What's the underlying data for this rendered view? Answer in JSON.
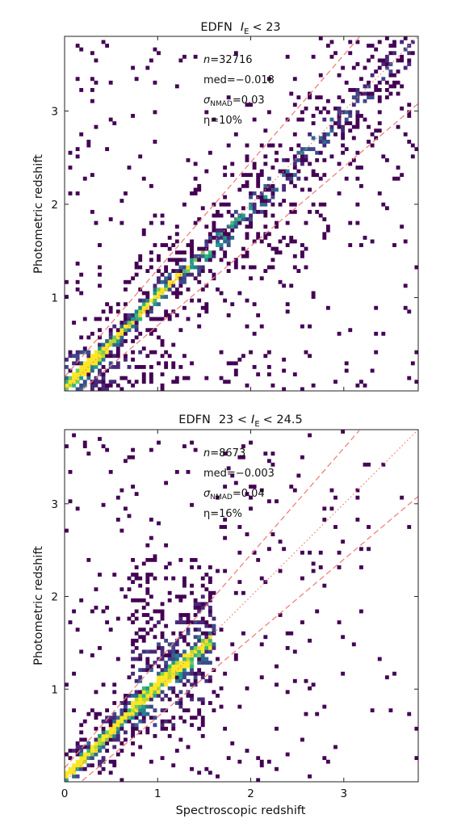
{
  "chart_data": [
    {
      "type": "heatmap",
      "title_parts": {
        "prefix": "EDFN",
        "var": "I",
        "sub": "E",
        "suffix": "< 23"
      },
      "xlabel": "",
      "ylabel": "Photometric redshift",
      "xlim": [
        0,
        3.8
      ],
      "ylim": [
        0,
        3.8
      ],
      "yticks": [
        1,
        2,
        3
      ],
      "xticks": [],
      "stats": [
        {
          "key": "n",
          "text": "n=32716"
        },
        {
          "key": "med",
          "text": "med=−0.018"
        },
        {
          "key": "sigma",
          "prefix": "σ",
          "sub": "NMAD",
          "text": "=0.03"
        },
        {
          "key": "eta",
          "text": "η=10%"
        }
      ],
      "one_to_one": true,
      "outlier_bounds": 0.15,
      "density_ridge": [
        [
          0.02,
          0.05
        ],
        [
          0.3,
          0.32
        ],
        [
          0.6,
          0.62
        ],
        [
          0.95,
          0.98
        ],
        [
          1.3,
          1.3
        ],
        [
          1.6,
          1.55
        ]
      ],
      "colormap": "viridis"
    },
    {
      "type": "heatmap",
      "title_parts": {
        "prefix": "EDFN",
        "pre": "23 <",
        "var": "I",
        "sub": "E",
        "suffix": "< 24.5"
      },
      "xlabel": "Spectroscopic redshift",
      "ylabel": "Photometric redshift",
      "xlim": [
        0,
        3.8
      ],
      "ylim": [
        0,
        3.8
      ],
      "yticks": [
        1,
        2,
        3
      ],
      "xticks": [
        0,
        1,
        2,
        3
      ],
      "stats": [
        {
          "key": "n",
          "text": "n=8673"
        },
        {
          "key": "med",
          "text": "med=−0.003"
        },
        {
          "key": "sigma",
          "prefix": "σ",
          "sub": "NMAD",
          "text": "=0.04"
        },
        {
          "key": "eta",
          "text": "η=16%"
        }
      ],
      "one_to_one": true,
      "outlier_bounds": 0.15,
      "density_ridge": [
        [
          0.1,
          0.15
        ],
        [
          0.5,
          0.55
        ],
        [
          0.9,
          0.95
        ],
        [
          1.2,
          1.22
        ],
        [
          1.55,
          1.5
        ]
      ],
      "colormap": "viridis"
    }
  ],
  "colors": {
    "line": "#f08080",
    "viridis": [
      "#440154",
      "#482878",
      "#3e4989",
      "#31688e",
      "#26828e",
      "#1f9e89",
      "#35b779",
      "#6ece58",
      "#b5de2b",
      "#fde725"
    ]
  }
}
